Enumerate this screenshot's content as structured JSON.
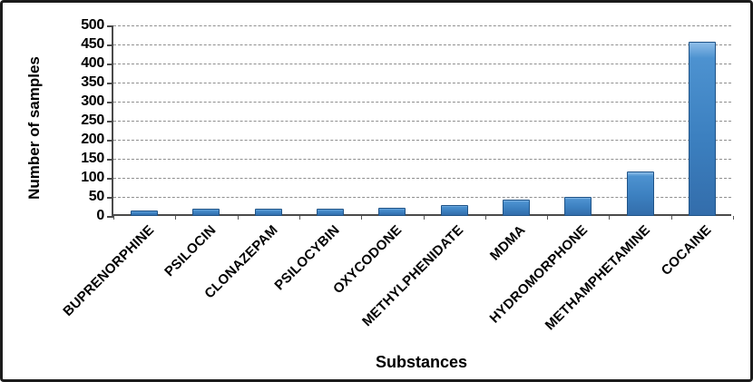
{
  "chart_data": {
    "type": "bar",
    "title": "",
    "xlabel": "Substances",
    "ylabel": "Number of samples",
    "categories": [
      "BUPRENORPHINE",
      "PSILOCIN",
      "CLONAZEPAM",
      "PSILOCYBIN",
      "OXYCODONE",
      "METHYLPHENIDATE",
      "MDMA",
      "HYDROMORPHONE",
      "METHAMPHETAMINE",
      "COCAINE"
    ],
    "values": [
      15,
      20,
      19,
      19,
      22,
      28,
      44,
      50,
      117,
      457
    ],
    "ylim": [
      0,
      500
    ],
    "ytick_step": 50,
    "yticks": [
      0,
      50,
      100,
      150,
      200,
      250,
      300,
      350,
      400,
      450,
      500
    ],
    "grid": true,
    "legend": "none",
    "colors": {
      "bar_fill": "#3c80c0",
      "bar_highlight": "#8ebde8",
      "bar_border": "#1f5387",
      "gridline": "#8f8f8f",
      "axis": "#4a4a4a",
      "frame": "#1b1b1b",
      "text": "#000000"
    }
  }
}
